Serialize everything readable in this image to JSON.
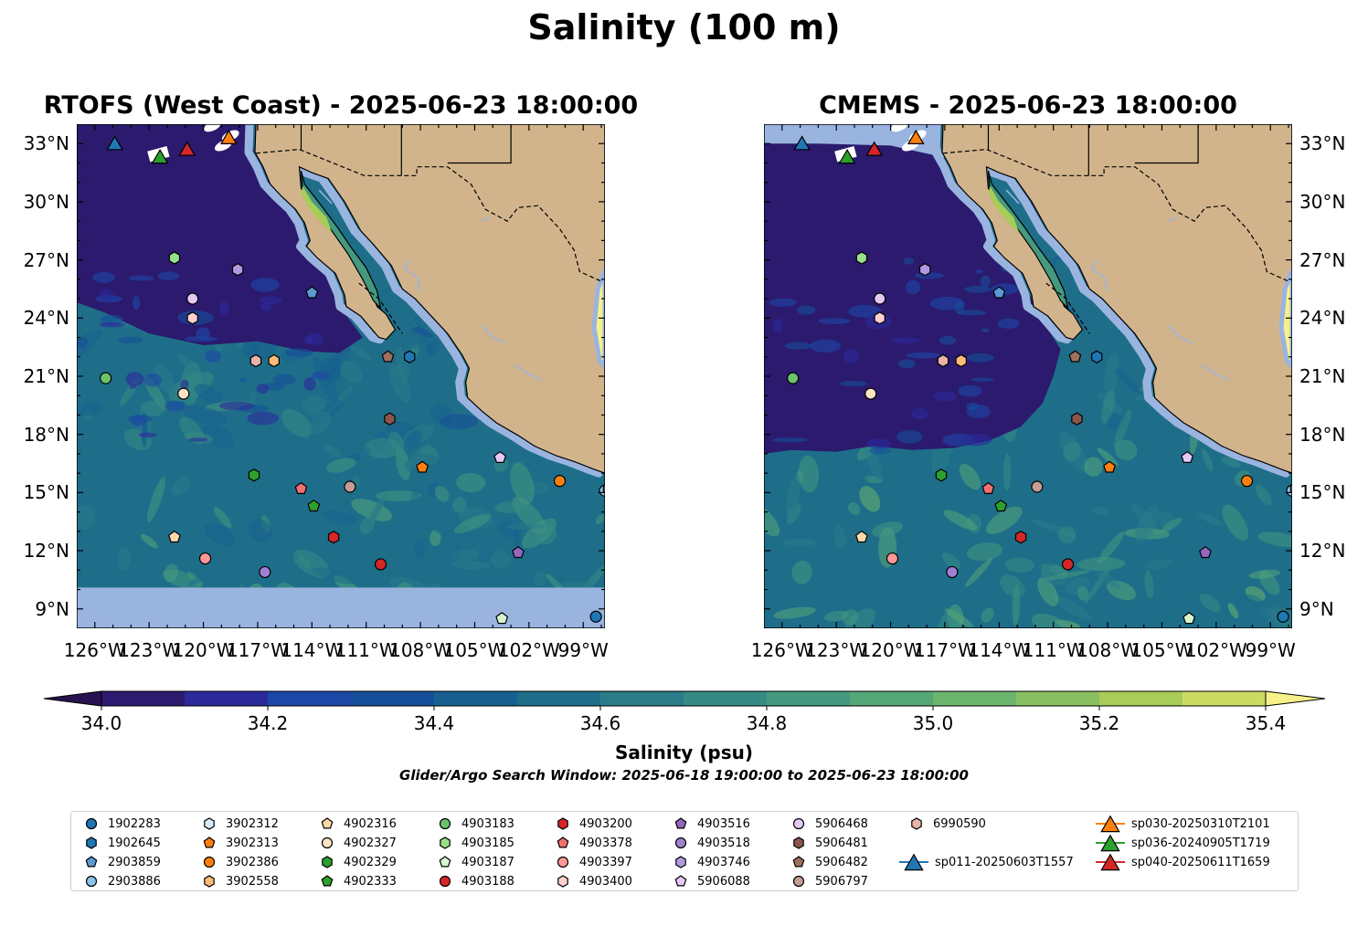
{
  "title": "Salinity (100 m)",
  "maps": [
    {
      "id": "rtofs",
      "title": "RTOFS (West Coast) - 2025-06-23 18:00:00",
      "region_bottom_no_data": true
    },
    {
      "id": "cmems",
      "title": "CMEMS - 2025-06-23 18:00:00",
      "region_bottom_no_data": false
    }
  ],
  "extent": {
    "lon_min": -127,
    "lon_max": -97.8,
    "lat_min": 8,
    "lat_max": 34
  },
  "lat_ticks": [
    {
      "value": 33,
      "label": "33°N"
    },
    {
      "value": 30,
      "label": "30°N"
    },
    {
      "value": 27,
      "label": "27°N"
    },
    {
      "value": 24,
      "label": "24°N"
    },
    {
      "value": 21,
      "label": "21°N"
    },
    {
      "value": 18,
      "label": "18°N"
    },
    {
      "value": 15,
      "label": "15°N"
    },
    {
      "value": 12,
      "label": "12°N"
    },
    {
      "value": 9,
      "label": "9°N"
    }
  ],
  "lon_ticks": [
    {
      "value": -126,
      "label": "126°W"
    },
    {
      "value": -123,
      "label": "123°W"
    },
    {
      "value": -120,
      "label": "120°W"
    },
    {
      "value": -117,
      "label": "117°W"
    },
    {
      "value": -114,
      "label": "114°W"
    },
    {
      "value": -111,
      "label": "111°W"
    },
    {
      "value": -108,
      "label": "108°W"
    },
    {
      "value": -105,
      "label": "105°W"
    },
    {
      "value": -102,
      "label": "102°W"
    },
    {
      "value": -99,
      "label": "99°W"
    }
  ],
  "colorbar": {
    "label": "Salinity (psu)",
    "min": 34.0,
    "max": 35.4,
    "step": 0.1,
    "colors": [
      "#2b1a6e",
      "#2c2a9b",
      "#1c47a6",
      "#154f99",
      "#18608f",
      "#1e6e8a",
      "#2a7c88",
      "#368a84",
      "#45997e",
      "#56a778",
      "#6bb46e",
      "#88c061",
      "#a8cc57",
      "#cbdb62"
    ],
    "under_color": "#27124f",
    "over_color": "#f8f08a",
    "ticks": [
      {
        "value": 34.0,
        "label": "34.0"
      },
      {
        "value": 34.2,
        "label": "34.2"
      },
      {
        "value": 34.4,
        "label": "34.4"
      },
      {
        "value": 34.6,
        "label": "34.6"
      },
      {
        "value": 34.8,
        "label": "34.8"
      },
      {
        "value": 35.0,
        "label": "35.0"
      },
      {
        "value": 35.2,
        "label": "35.2"
      },
      {
        "value": 35.4,
        "label": "35.4"
      }
    ]
  },
  "search_window": "Glider/Argo Search Window: 2025-06-18 19:00:00 to 2025-06-23 18:00:00",
  "colors": {
    "land": "#d2b48c",
    "no_data": "#9ab4e0",
    "river": "#9ab4e0"
  },
  "platforms": [
    {
      "id": "1902283",
      "marker": "circle",
      "color": "#1f77b4",
      "lon": -98.3,
      "lat": 8.6
    },
    {
      "id": "1902645",
      "marker": "hexagon",
      "color": "#1f77b4",
      "lon": -108.6,
      "lat": 22.0
    },
    {
      "id": "2903859",
      "marker": "pentagon",
      "color": "#5b9bd5",
      "lon": -114.0,
      "lat": 25.3
    },
    {
      "id": "2903886",
      "marker": "circle",
      "color": "#8ec3ea",
      "lon": -97.8,
      "lat": 15.1
    },
    {
      "id": "3902312",
      "marker": "hexagon",
      "color": "#d6ecfa",
      "lon": -97.6,
      "lat": 15.2
    },
    {
      "id": "3902313",
      "marker": "pentagon",
      "color": "#ff7f0e",
      "lon": -107.9,
      "lat": 16.3
    },
    {
      "id": "3902386",
      "marker": "circle",
      "color": "#ff7f0e",
      "lon": -100.3,
      "lat": 15.6
    },
    {
      "id": "3902558",
      "marker": "hexagon",
      "color": "#ffbb78",
      "lon": -116.1,
      "lat": 21.8
    },
    {
      "id": "4902316",
      "marker": "pentagon",
      "color": "#ffd8a8",
      "lon": -121.6,
      "lat": 12.7
    },
    {
      "id": "4902327",
      "marker": "circle",
      "color": "#ffe4c4",
      "lon": -121.1,
      "lat": 20.1
    },
    {
      "id": "4902329",
      "marker": "hexagon",
      "color": "#2ca02c",
      "lon": -117.2,
      "lat": 15.9
    },
    {
      "id": "4902333",
      "marker": "pentagon",
      "color": "#2ca02c",
      "lon": -113.9,
      "lat": 14.3
    },
    {
      "id": "4903183",
      "marker": "circle",
      "color": "#6cc46a",
      "lon": -125.4,
      "lat": 20.9
    },
    {
      "id": "4903185",
      "marker": "hexagon",
      "color": "#98df8a",
      "lon": -121.6,
      "lat": 27.1
    },
    {
      "id": "4903187",
      "marker": "pentagon",
      "color": "#d8f5d0",
      "lon": -103.5,
      "lat": 8.5
    },
    {
      "id": "4903188",
      "marker": "circle",
      "color": "#d62728",
      "lon": -110.2,
      "lat": 11.3
    },
    {
      "id": "4903200",
      "marker": "hexagon",
      "color": "#d62728",
      "lon": -112.8,
      "lat": 12.7
    },
    {
      "id": "4903378",
      "marker": "pentagon",
      "color": "#f07070",
      "lon": -114.6,
      "lat": 15.2
    },
    {
      "id": "4903397",
      "marker": "circle",
      "color": "#ff9896",
      "lon": -119.9,
      "lat": 11.6
    },
    {
      "id": "4903400",
      "marker": "hexagon",
      "color": "#ffd0cf",
      "lon": -120.6,
      "lat": 24.0
    },
    {
      "id": "4903516",
      "marker": "pentagon",
      "color": "#9467bd",
      "lon": -102.6,
      "lat": 11.9
    },
    {
      "id": "4903518",
      "marker": "circle",
      "color": "#a27fd0",
      "lon": -116.6,
      "lat": 10.9
    },
    {
      "id": "4903746",
      "marker": "hexagon",
      "color": "#b39ae0",
      "lon": -118.1,
      "lat": 26.5
    },
    {
      "id": "5906088",
      "marker": "pentagon",
      "color": "#e6c8f5",
      "lon": -103.6,
      "lat": 16.8
    },
    {
      "id": "5906468",
      "marker": "circle",
      "color": "#e2c8f2",
      "lon": -120.6,
      "lat": 25.0
    },
    {
      "id": "5906481",
      "marker": "hexagon",
      "color": "#8c564b",
      "lon": -109.7,
      "lat": 18.8
    },
    {
      "id": "5906482",
      "marker": "pentagon",
      "color": "#a0705f",
      "lon": -109.8,
      "lat": 22.0
    },
    {
      "id": "5906797",
      "marker": "circle",
      "color": "#c49c94",
      "lon": -111.9,
      "lat": 15.3
    },
    {
      "id": "6990590",
      "marker": "hexagon",
      "color": "#e8b4a8",
      "lon": -117.1,
      "lat": 21.8
    },
    {
      "id": "sp011-20250603T1557",
      "marker": "triangle",
      "color": "#1f77b4",
      "lon": -124.9,
      "lat": 33.0
    },
    {
      "id": "sp030-20250310T2101",
      "marker": "triangle",
      "color": "#ff7f0e",
      "lon": -118.6,
      "lat": 33.3
    },
    {
      "id": "sp036-20240905T1719",
      "marker": "triangle",
      "color": "#2ca02c",
      "lon": -122.4,
      "lat": 32.3
    },
    {
      "id": "sp040-20250611T1659",
      "marker": "triangle",
      "color": "#d62728",
      "lon": -120.9,
      "lat": 32.7
    }
  ]
}
